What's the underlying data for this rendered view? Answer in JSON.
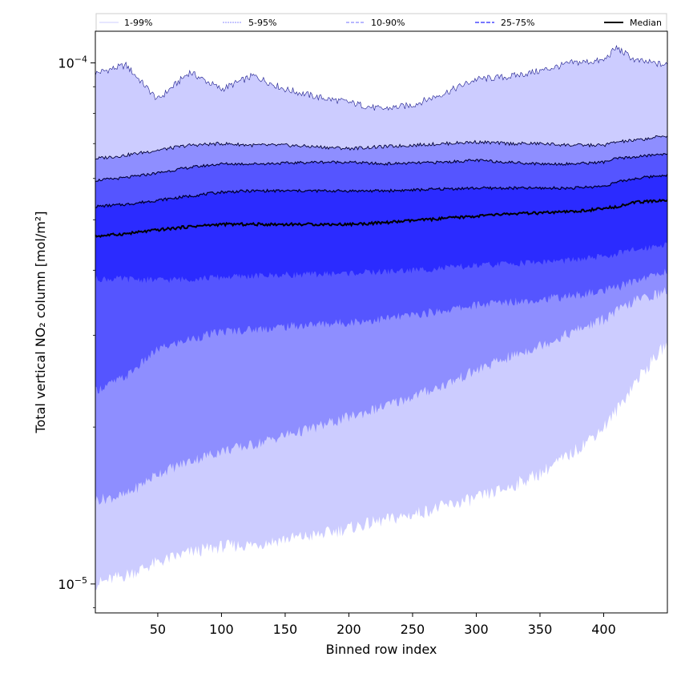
{
  "chart_data": {
    "type": "area",
    "title": "",
    "xlabel": "Binned row index",
    "ylabel": "Total vertical NO₂ column [mol/m²]",
    "yscale": "log",
    "xlim": [
      1,
      450
    ],
    "ylim": [
      8.8e-06,
      0.000115
    ],
    "x_ticks": [
      50,
      100,
      150,
      200,
      250,
      300,
      350,
      400
    ],
    "y_tick_labels": [
      {
        "value": 1e-05,
        "base": "10",
        "exp": "−5"
      },
      {
        "value": 0.0001,
        "base": "10",
        "exp": "−4"
      }
    ],
    "legend_position": "top, spanning",
    "grid": false,
    "colors": {
      "band_1_99": "#ccccff",
      "band_5_95": "#8e8eff",
      "band_10_90": "#5555ff",
      "band_25_75": "#2b2bff",
      "median": "#000000"
    },
    "x": [
      1,
      25,
      50,
      75,
      100,
      125,
      150,
      175,
      200,
      225,
      250,
      275,
      300,
      325,
      350,
      375,
      400,
      410,
      425,
      450
    ],
    "series": [
      {
        "name": "1-99%",
        "lower": [
          1e-05,
          1.04e-05,
          1.1e-05,
          1.15e-05,
          1.18e-05,
          1.19e-05,
          1.22e-05,
          1.24e-05,
          1.28e-05,
          1.32e-05,
          1.36e-05,
          1.41e-05,
          1.46e-05,
          1.53e-05,
          1.63e-05,
          1.78e-05,
          2e-05,
          2.15e-05,
          2.45e-05,
          2.9e-05
        ],
        "upper": [
          9.55e-05,
          9.9e-05,
          8.5e-05,
          9.6e-05,
          8.9e-05,
          9.45e-05,
          8.9e-05,
          8.6e-05,
          8.4e-05,
          8.15e-05,
          8.3e-05,
          8.75e-05,
          9.3e-05,
          9.4e-05,
          9.65e-05,
          0.0001,
          0.000101,
          0.000107,
          0.000101,
          9.9e-05
        ]
      },
      {
        "name": "5-95%",
        "lower": [
          1.45e-05,
          1.48e-05,
          1.63e-05,
          1.72e-05,
          1.8e-05,
          1.85e-05,
          1.93e-05,
          2e-05,
          2.09e-05,
          2.18e-05,
          2.29e-05,
          2.41e-05,
          2.57e-05,
          2.72e-05,
          2.87e-05,
          3.04e-05,
          3.22e-05,
          3.33e-05,
          3.5e-05,
          3.65e-05
        ],
        "upper": [
          6.55e-05,
          6.65e-05,
          6.8e-05,
          6.95e-05,
          7e-05,
          6.95e-05,
          6.95e-05,
          6.9e-05,
          6.85e-05,
          6.9e-05,
          6.95e-05,
          7e-05,
          7.05e-05,
          7e-05,
          7e-05,
          6.95e-05,
          6.95e-05,
          7.05e-05,
          7.1e-05,
          7.25e-05
        ]
      },
      {
        "name": "10-90%",
        "lower": [
          2.35e-05,
          2.5e-05,
          2.82e-05,
          2.95e-05,
          3.05e-05,
          3.08e-05,
          3.12e-05,
          3.15e-05,
          3.18e-05,
          3.22e-05,
          3.28e-05,
          3.35e-05,
          3.43e-05,
          3.48e-05,
          3.52e-05,
          3.57e-05,
          3.65e-05,
          3.7e-05,
          3.83e-05,
          3.98e-05
        ]
      },
      {
        "name": "25-75%",
        "lower": [
          3.85e-05,
          3.85e-05,
          3.83e-05,
          3.85e-05,
          3.88e-05,
          3.9e-05,
          3.92e-05,
          3.93e-05,
          3.95e-05,
          3.97e-05,
          4e-05,
          4.04e-05,
          4.08e-05,
          4.12e-05,
          4.15e-05,
          4.18e-05,
          4.25e-05,
          4.3e-05,
          4.38e-05,
          4.5e-05
        ],
        "upper": [
          5.3e-05,
          5.35e-05,
          5.45e-05,
          5.55e-05,
          5.65e-05,
          5.68e-05,
          5.68e-05,
          5.68e-05,
          5.68e-05,
          5.68e-05,
          5.7e-05,
          5.73e-05,
          5.75e-05,
          5.75e-05,
          5.75e-05,
          5.75e-05,
          5.8e-05,
          5.9e-05,
          6e-05,
          6.1e-05
        ]
      },
      {
        "name": "Median",
        "values": [
          4.65e-05,
          4.7e-05,
          4.78e-05,
          4.85e-05,
          4.9e-05,
          4.9e-05,
          4.9e-05,
          4.9e-05,
          4.9e-05,
          4.93e-05,
          4.98e-05,
          5.03e-05,
          5.08e-05,
          5.13e-05,
          5.15e-05,
          5.18e-05,
          5.25e-05,
          5.3e-05,
          5.4e-05,
          5.45e-05
        ]
      }
    ],
    "band_10_90_upper": [
      5.95e-05,
      6.02e-05,
      6.15e-05,
      6.3e-05,
      6.4e-05,
      6.4e-05,
      6.42e-05,
      6.45e-05,
      6.45e-05,
      6.4e-05,
      6.42e-05,
      6.45e-05,
      6.5e-05,
      6.45e-05,
      6.4e-05,
      6.4e-05,
      6.45e-05,
      6.55e-05,
      6.6e-05,
      6.7e-05
    ]
  }
}
